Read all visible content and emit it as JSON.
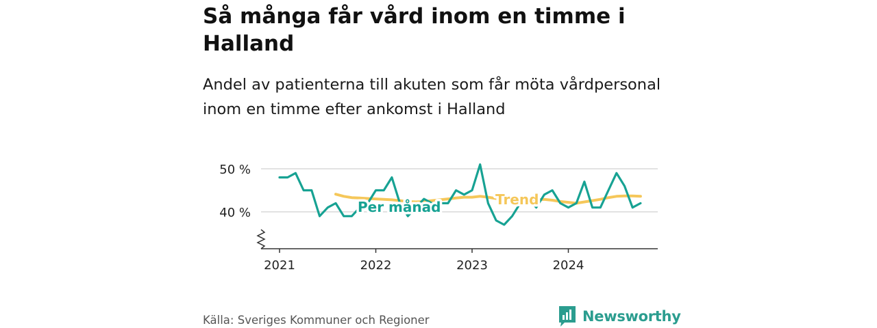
{
  "title": "Så många får vård inom en timme i Halland",
  "subtitle": "Andel av patienterna till akuten som får möta vårdpersonal inom en timme efter ankomst i Halland",
  "source": "Källa: Sveriges Kommuner och Regioner",
  "brand": "Newsworthy",
  "colors": {
    "monthly": "#17a293",
    "trend": "#f5c75a",
    "grid": "#d9d9d9",
    "axis": "#333333",
    "brand": "#2b9d8f"
  },
  "chart_data": {
    "type": "line",
    "ylim": [
      35,
      52
    ],
    "y_ticks": [
      40,
      50
    ],
    "y_tick_labels": [
      "40 %",
      "50 %"
    ],
    "y_axis_break": true,
    "x_tick_labels": [
      "2021",
      "2022",
      "2023",
      "2024"
    ],
    "grid": "horizontal",
    "series": [
      {
        "name": "Per månad",
        "x": [
          "2021-01",
          "2021-02",
          "2021-03",
          "2021-04",
          "2021-05",
          "2021-06",
          "2021-07",
          "2021-08",
          "2021-09",
          "2021-10",
          "2021-11",
          "2021-12",
          "2022-01",
          "2022-02",
          "2022-03",
          "2022-04",
          "2022-05",
          "2022-06",
          "2022-07",
          "2022-08",
          "2022-09",
          "2022-10",
          "2022-11",
          "2022-12",
          "2023-01",
          "2023-02",
          "2023-03",
          "2023-04",
          "2023-05",
          "2023-06",
          "2023-07",
          "2023-08",
          "2023-09",
          "2023-10",
          "2023-11",
          "2023-12",
          "2024-01",
          "2024-02",
          "2024-03",
          "2024-04",
          "2024-05",
          "2024-06",
          "2024-07",
          "2024-08",
          "2024-09",
          "2024-10"
        ],
        "values": [
          48,
          48,
          49,
          45,
          45,
          39,
          41,
          42,
          39,
          39,
          41,
          42,
          45,
          45,
          48,
          42,
          39,
          41,
          43,
          42,
          42,
          42,
          45,
          44,
          45,
          51,
          42,
          38,
          37,
          39,
          42,
          43,
          41,
          44,
          45,
          42,
          41,
          42,
          47,
          41,
          41,
          45,
          49,
          46,
          41,
          42
        ]
      },
      {
        "name": "Trend",
        "x": [
          "2021-08",
          "2021-09",
          "2021-10",
          "2021-11",
          "2021-12",
          "2022-01",
          "2022-02",
          "2022-03",
          "2022-04",
          "2022-05",
          "2022-06",
          "2022-07",
          "2022-08",
          "2022-09",
          "2022-10",
          "2022-11",
          "2022-12",
          "2023-01",
          "2023-02",
          "2023-03",
          "2023-04",
          "2023-05",
          "2023-06",
          "2023-07",
          "2023-08",
          "2023-09",
          "2023-10",
          "2023-11",
          "2023-12",
          "2024-01",
          "2024-02",
          "2024-03",
          "2024-04",
          "2024-05",
          "2024-06",
          "2024-07",
          "2024-08",
          "2024-09",
          "2024-10"
        ],
        "values": [
          44.1,
          43.6,
          43.3,
          43.2,
          43.1,
          43.0,
          42.9,
          42.8,
          42.6,
          42.4,
          42.3,
          42.4,
          42.6,
          42.8,
          43.0,
          43.2,
          43.4,
          43.4,
          43.6,
          43.4,
          43.1,
          42.8,
          42.6,
          42.5,
          42.6,
          42.8,
          42.9,
          42.7,
          42.4,
          42.2,
          42.0,
          42.3,
          42.6,
          42.9,
          43.3,
          43.6,
          43.7,
          43.7,
          43.6
        ]
      }
    ],
    "series_labels": [
      "Per månad",
      "Trend"
    ]
  }
}
